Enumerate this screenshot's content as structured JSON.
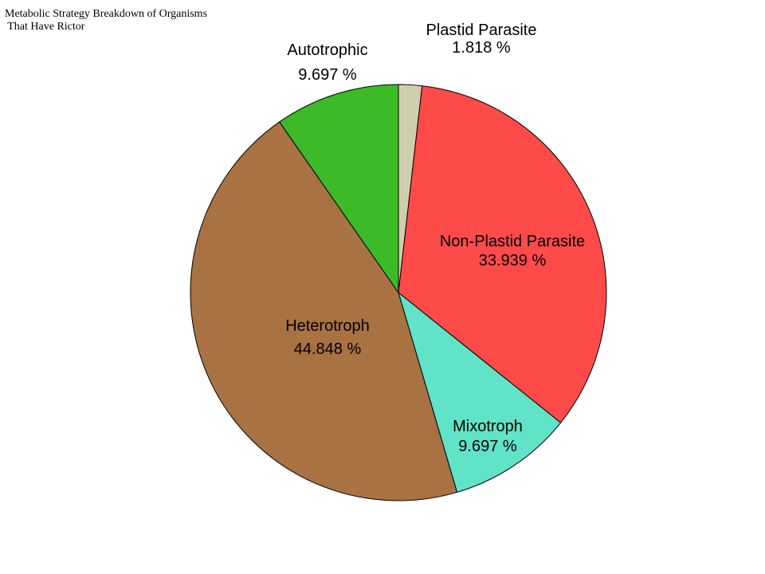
{
  "chart_data": {
    "type": "pie",
    "title_lines": [
      "Metabolic Strategy Breakdown of Organisms",
      " That Have Rictor"
    ],
    "slices": [
      {
        "label": "Plastid Parasite",
        "percent_text": "1.818 %",
        "value": 1.818,
        "color": "#cfcfad"
      },
      {
        "label": "Non-Plastid Parasite",
        "percent_text": "33.939 %",
        "value": 33.939,
        "color": "#ff4a4a"
      },
      {
        "label": "Mixotroph",
        "percent_text": "9.697 %",
        "value": 9.697,
        "color": "#61e3c7"
      },
      {
        "label": "Heterotroph",
        "percent_text": "44.848 %",
        "value": 44.848,
        "color": "#a87242"
      },
      {
        "label": "Autotrophic",
        "percent_text": "9.697 %",
        "value": 9.697,
        "color": "#3cba28"
      }
    ],
    "start_angle": "top",
    "direction": "clockwise",
    "legend": "none"
  }
}
